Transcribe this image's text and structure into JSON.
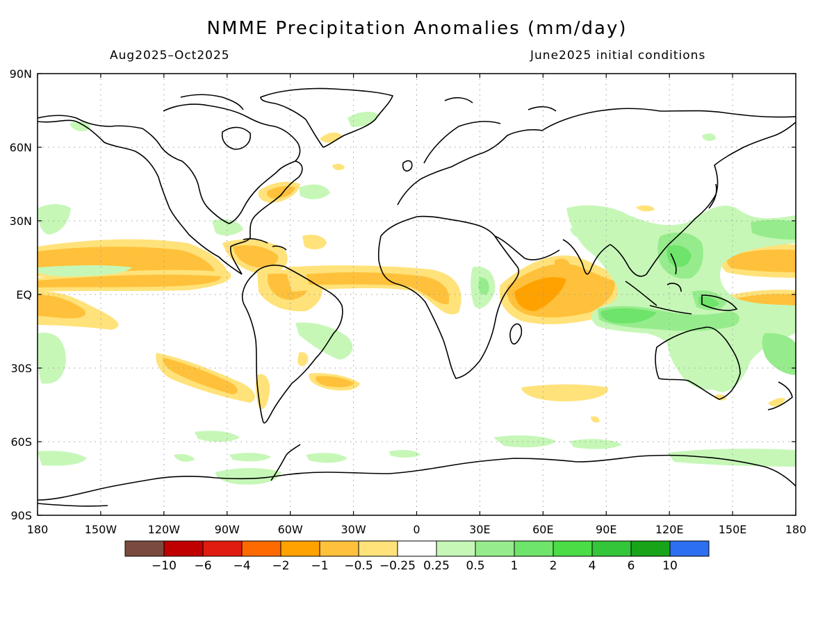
{
  "map": {
    "title": "NMME Precipitation Anomalies (mm/day)",
    "period": "Aug2025–Oct2025",
    "init": "June2025 initial conditions",
    "lon_labels": [
      "180",
      "150W",
      "120W",
      "90W",
      "60W",
      "30W",
      "0",
      "30E",
      "60E",
      "90E",
      "120E",
      "150E",
      "180"
    ],
    "lat_labels": [
      "90N",
      "60N",
      "30N",
      "EQ",
      "30S",
      "60S",
      "90S"
    ]
  },
  "colorbar": {
    "labels": [
      "−10",
      "−6",
      "−4",
      "−2",
      "−1",
      "−0.5",
      "−0.25",
      "0.25",
      "0.5",
      "1",
      "2",
      "4",
      "6",
      "10"
    ],
    "colors": [
      "#7a4a3e",
      "#c00000",
      "#e01b10",
      "#ff6a00",
      "#ffa200",
      "#ffc13b",
      "#ffe27a",
      "#ffffff",
      "#c6f7b7",
      "#96ec8c",
      "#6ee46a",
      "#4bdc46",
      "#33c53a",
      "#17a419",
      "#2c6ff0"
    ]
  }
}
